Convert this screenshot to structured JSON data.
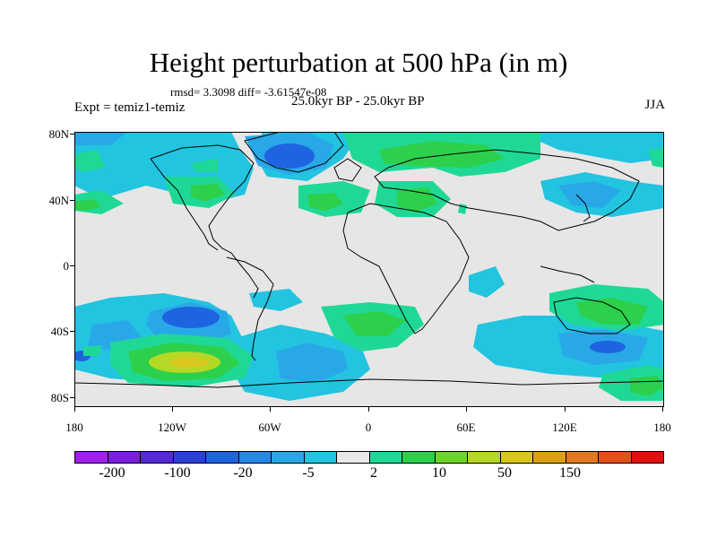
{
  "title": "Height perturbation at 500 hPa (in m)",
  "stats": "rmsd= 3.3098 diff= -3.61547e-08",
  "expt": "Expt = temiz1-temiz",
  "period": "25.0kyr BP - 25.0kyr BP",
  "season": "JJA",
  "axes": {
    "y_ticks": [
      "80N",
      "40N",
      "0",
      "40S",
      "80S"
    ],
    "x_ticks": [
      "180",
      "120W",
      "60W",
      "0",
      "60E",
      "120E",
      "180"
    ]
  },
  "colorbar": {
    "colors": [
      "#a020f0",
      "#7a1fe0",
      "#5628d6",
      "#2e3fd8",
      "#1e64e0",
      "#2787e6",
      "#29a8e8",
      "#22c4e0",
      "#e8e8e8",
      "#20d896",
      "#2cd04a",
      "#6ed42a",
      "#b4d826",
      "#d8c81e",
      "#dca012",
      "#e07820",
      "#e4501a",
      "#e01010"
    ],
    "labels": [
      "-200",
      "-100",
      "-20",
      "-5",
      "2",
      "10",
      "50",
      "150"
    ]
  }
}
